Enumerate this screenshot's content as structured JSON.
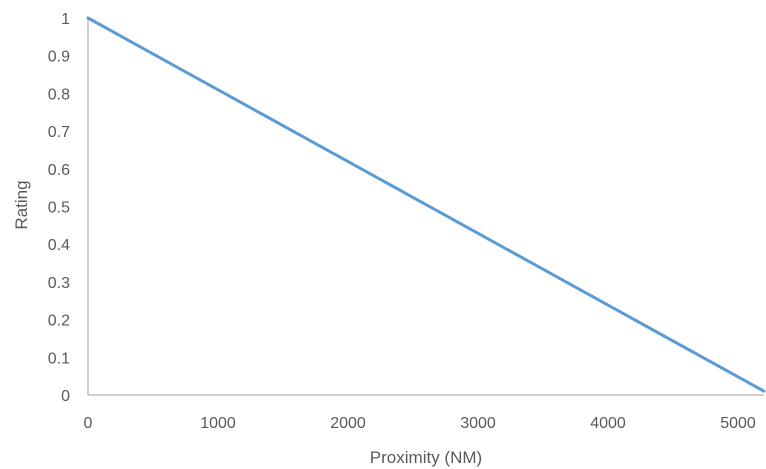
{
  "chart_data": {
    "type": "line",
    "title": "",
    "xlabel": "Proximity (NM)",
    "ylabel": "Rating",
    "xlim": [
      0,
      5200
    ],
    "ylim": [
      0,
      1
    ],
    "x_ticks": [
      0,
      1000,
      2000,
      3000,
      4000,
      5000
    ],
    "y_ticks": [
      0,
      0.1,
      0.2,
      0.3,
      0.4,
      0.5,
      0.6,
      0.7,
      0.8,
      0.9,
      1
    ],
    "x_tick_labels": [
      "0",
      "1000",
      "2000",
      "3000",
      "4000",
      "5000"
    ],
    "y_tick_labels": [
      "0",
      "0.1",
      "0.2",
      "0.3",
      "0.4",
      "0.5",
      "0.6",
      "0.7",
      "0.8",
      "0.9",
      "1"
    ],
    "grid": false,
    "legend": "none",
    "series": [
      {
        "color": "#5b9bd5",
        "x": [
          0,
          5200
        ],
        "y": [
          1,
          0.01
        ]
      }
    ]
  }
}
